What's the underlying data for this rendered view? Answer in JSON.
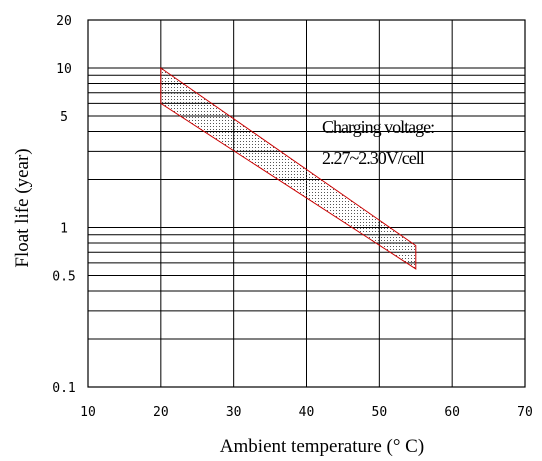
{
  "chart_data": {
    "type": "area",
    "title": "",
    "xlabel": "Ambient temperature (° C)",
    "ylabel": "Float life (year)",
    "xlim": [
      10,
      70
    ],
    "ylim": [
      0.1,
      20
    ],
    "y_scale": "log",
    "grid": true,
    "x_ticks": [
      {
        "value": 10,
        "label": "10"
      },
      {
        "value": 20,
        "label": "20"
      },
      {
        "value": 30,
        "label": "30"
      },
      {
        "value": 40,
        "label": "40"
      },
      {
        "value": 50,
        "label": "50"
      },
      {
        "value": 60,
        "label": "60"
      },
      {
        "value": 70,
        "label": "70"
      }
    ],
    "y_ticks": [
      {
        "value": 0.1,
        "label": "0.1"
      },
      {
        "value": 0.5,
        "label": "0.5"
      },
      {
        "value": 1,
        "label": "1"
      },
      {
        "value": 5,
        "label": "5"
      },
      {
        "value": 10,
        "label": "10"
      },
      {
        "value": 20,
        "label": "20"
      }
    ],
    "y_gridlines": [
      0.2,
      0.3,
      0.4,
      0.5,
      0.6,
      0.7,
      0.8,
      0.9,
      1,
      2,
      3,
      4,
      5,
      6,
      7,
      8,
      9,
      10
    ],
    "band": {
      "color": "#cc0000",
      "polygon": [
        {
          "x": 20,
          "y": 10
        },
        {
          "x": 55,
          "y": 0.77
        },
        {
          "x": 55,
          "y": 0.55
        },
        {
          "x": 20,
          "y": 6
        }
      ]
    },
    "annotation": {
      "lines": [
        "Charging voltage:",
        "2.27~2.30V/cell"
      ],
      "x": 42,
      "y": 3.7
    }
  }
}
